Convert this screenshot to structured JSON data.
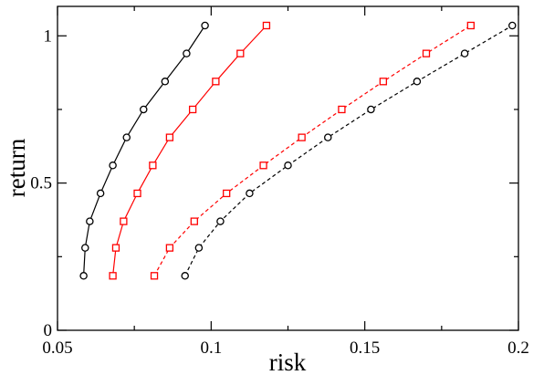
{
  "chart_data": {
    "type": "line",
    "xlabel": "risk",
    "ylabel": "return",
    "xlim": [
      0.05,
      0.2
    ],
    "ylim": [
      0,
      1.1
    ],
    "x_ticks": [
      0.05,
      0.1,
      0.15,
      0.2
    ],
    "x_tick_labels": [
      "0.05",
      "0.1",
      "0.15",
      "0.2"
    ],
    "y_ticks": [
      0,
      0.5,
      1
    ],
    "y_tick_labels": [
      "0",
      "0.5",
      "1"
    ],
    "grid": false,
    "series": [
      {
        "marker": "circle",
        "color": "#000000",
        "line_style": "solid",
        "x": [
          0.0585,
          0.059,
          0.0605,
          0.064,
          0.068,
          0.0725,
          0.078,
          0.085,
          0.092,
          0.098
        ],
        "y": [
          0.185,
          0.28,
          0.37,
          0.465,
          0.56,
          0.655,
          0.75,
          0.845,
          0.94,
          1.035
        ]
      },
      {
        "marker": "square",
        "color": "#ff0000",
        "line_style": "solid",
        "x": [
          0.068,
          0.069,
          0.0715,
          0.076,
          0.081,
          0.0865,
          0.094,
          0.1015,
          0.1095,
          0.118
        ],
        "y": [
          0.185,
          0.28,
          0.37,
          0.465,
          0.56,
          0.655,
          0.75,
          0.845,
          0.94,
          1.035
        ]
      },
      {
        "marker": "square",
        "color": "#ff0000",
        "line_style": "dashed",
        "x": [
          0.0815,
          0.0865,
          0.0945,
          0.105,
          0.117,
          0.1295,
          0.1425,
          0.156,
          0.17,
          0.1845
        ],
        "y": [
          0.185,
          0.28,
          0.37,
          0.465,
          0.56,
          0.655,
          0.75,
          0.845,
          0.94,
          1.035
        ]
      },
      {
        "marker": "circle",
        "color": "#000000",
        "line_style": "dashed",
        "x": [
          0.0915,
          0.096,
          0.103,
          0.1125,
          0.125,
          0.138,
          0.152,
          0.167,
          0.1825,
          0.198
        ],
        "y": [
          0.185,
          0.28,
          0.37,
          0.465,
          0.56,
          0.655,
          0.75,
          0.845,
          0.94,
          1.035
        ]
      }
    ]
  }
}
